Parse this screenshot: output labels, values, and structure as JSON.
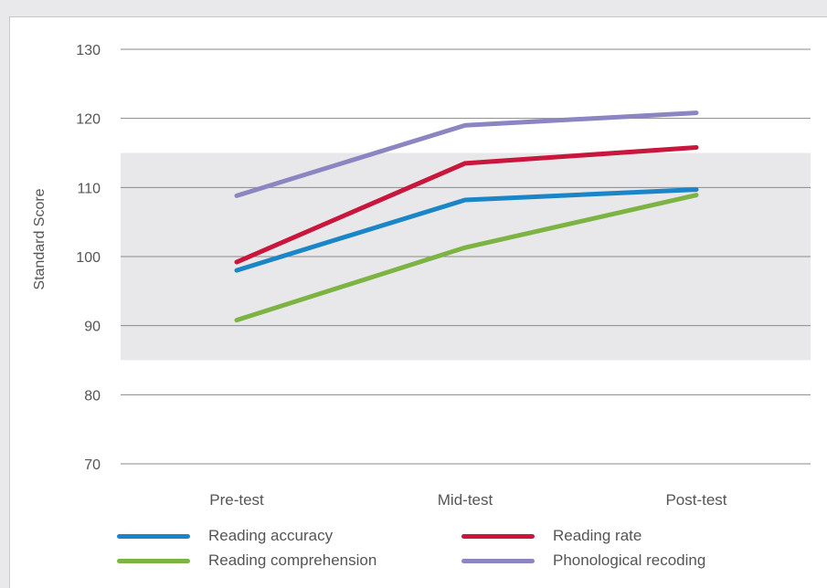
{
  "chart_data": {
    "type": "line",
    "title": "",
    "xlabel": "",
    "ylabel": "Standard Score",
    "ylim": [
      70,
      130
    ],
    "yticks": [
      70,
      80,
      90,
      100,
      110,
      120,
      130
    ],
    "categories": [
      "Pre-test",
      "Mid-test",
      "Post-test"
    ],
    "shaded_band": [
      85,
      115
    ],
    "grid": true,
    "legend_position": "bottom",
    "series": [
      {
        "name": "Reading accuracy",
        "color": "#1a86c8",
        "values": [
          98,
          108.2,
          109.7
        ]
      },
      {
        "name": "Reading rate",
        "color": "#c8163c",
        "values": [
          99.2,
          113.5,
          115.8
        ]
      },
      {
        "name": "Reading comprehension",
        "color": "#7cb342",
        "values": [
          90.8,
          101.3,
          108.9
        ]
      },
      {
        "name": "Phonological recoding",
        "color": "#8b85c1",
        "values": [
          108.8,
          119,
          120.8
        ]
      }
    ]
  }
}
